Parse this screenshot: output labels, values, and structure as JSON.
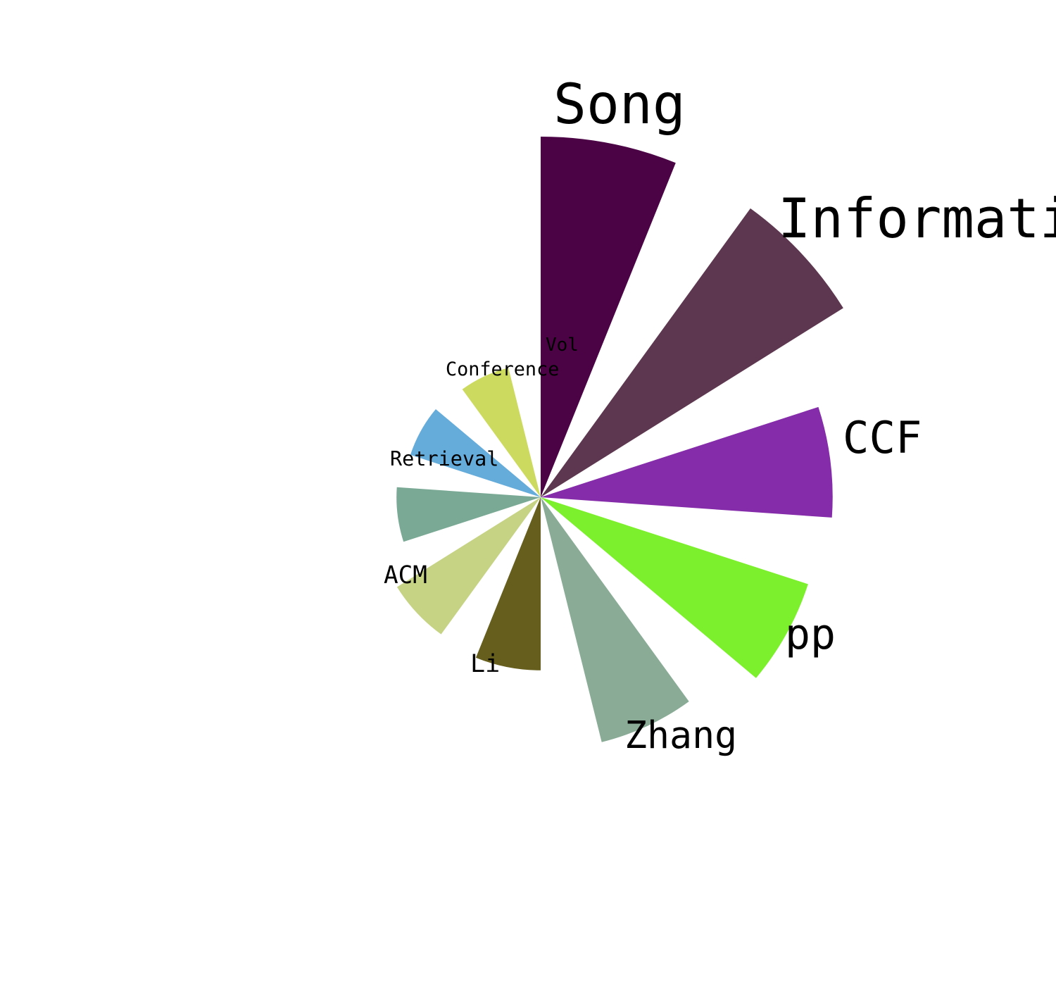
{
  "chart_data": {
    "type": "polar-bar",
    "title": "",
    "start_angle_deg": 0,
    "direction": "clockwise",
    "slice_width_deg": 22,
    "categories": [
      {
        "label": "Song",
        "value": 100,
        "color": "#4b0345"
      },
      {
        "label": "Information",
        "value": 99,
        "color": "#5d374f"
      },
      {
        "label": "CCF",
        "value": 81,
        "color": "#842ca9"
      },
      {
        "label": "pp",
        "value": 78,
        "color": "#7cf02c"
      },
      {
        "label": "Zhang",
        "value": 70,
        "color": "#8aac97"
      },
      {
        "label": "Li",
        "value": 48,
        "color": "#665e1c"
      },
      {
        "label": "ACM",
        "value": 47,
        "color": "#c7d384"
      },
      {
        "label": "Retrieval",
        "value": 40,
        "color": "#7aaa96"
      },
      {
        "label": "Conference",
        "value": 38,
        "color": "#65acdb"
      },
      {
        "label": "Vol",
        "value": 37,
        "color": "#ccdb5f"
      }
    ]
  }
}
